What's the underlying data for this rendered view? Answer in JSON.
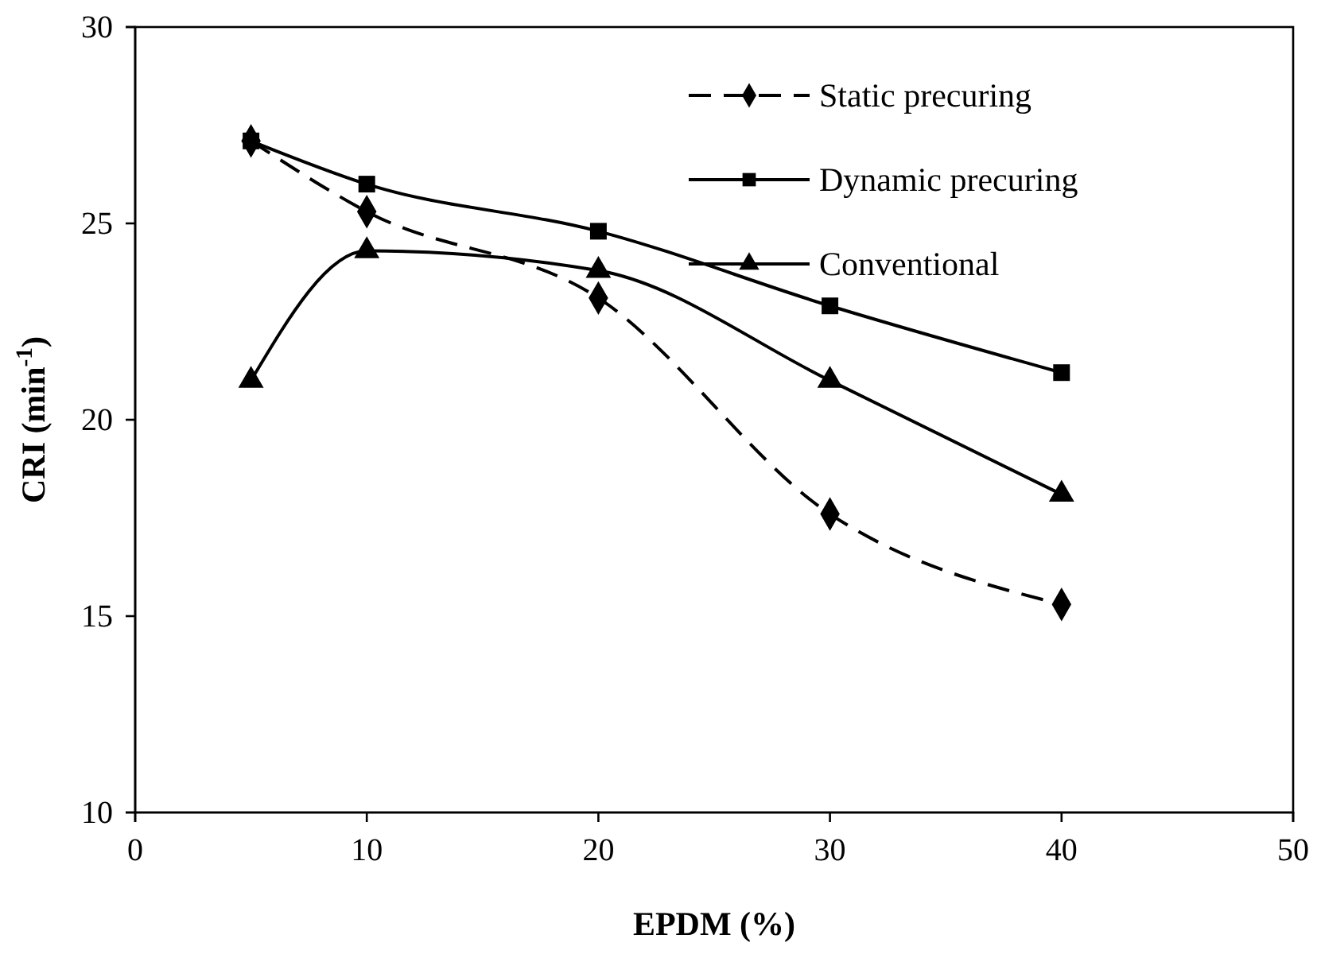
{
  "chart_data": {
    "type": "line",
    "xlabel": "EPDM (%)",
    "ylabel": "CRI (min$^{-1}$)",
    "x": [
      5,
      10,
      20,
      30,
      40
    ],
    "xlim": [
      0,
      50
    ],
    "xticks": [
      0,
      10,
      20,
      30,
      40,
      50
    ],
    "ylim": [
      10,
      30
    ],
    "yticks": [
      10,
      15,
      20,
      25,
      30
    ],
    "grid": false,
    "legend": "top right",
    "series": [
      {
        "name": "Static precuring",
        "color": "#000000",
        "marker": "diamond",
        "line_style": "dashed",
        "values": [
          27.1,
          25.3,
          23.1,
          17.6,
          15.3
        ]
      },
      {
        "name": "Dynamic precuring",
        "color": "#000000",
        "marker": "square",
        "line_style": "solid",
        "values": [
          27.1,
          26.0,
          24.8,
          22.9,
          21.2
        ]
      },
      {
        "name": "Conventional",
        "color": "#000000",
        "marker": "triangle",
        "line_style": "solid",
        "values": [
          21.0,
          24.3,
          23.8,
          21.0,
          18.1
        ]
      }
    ]
  }
}
